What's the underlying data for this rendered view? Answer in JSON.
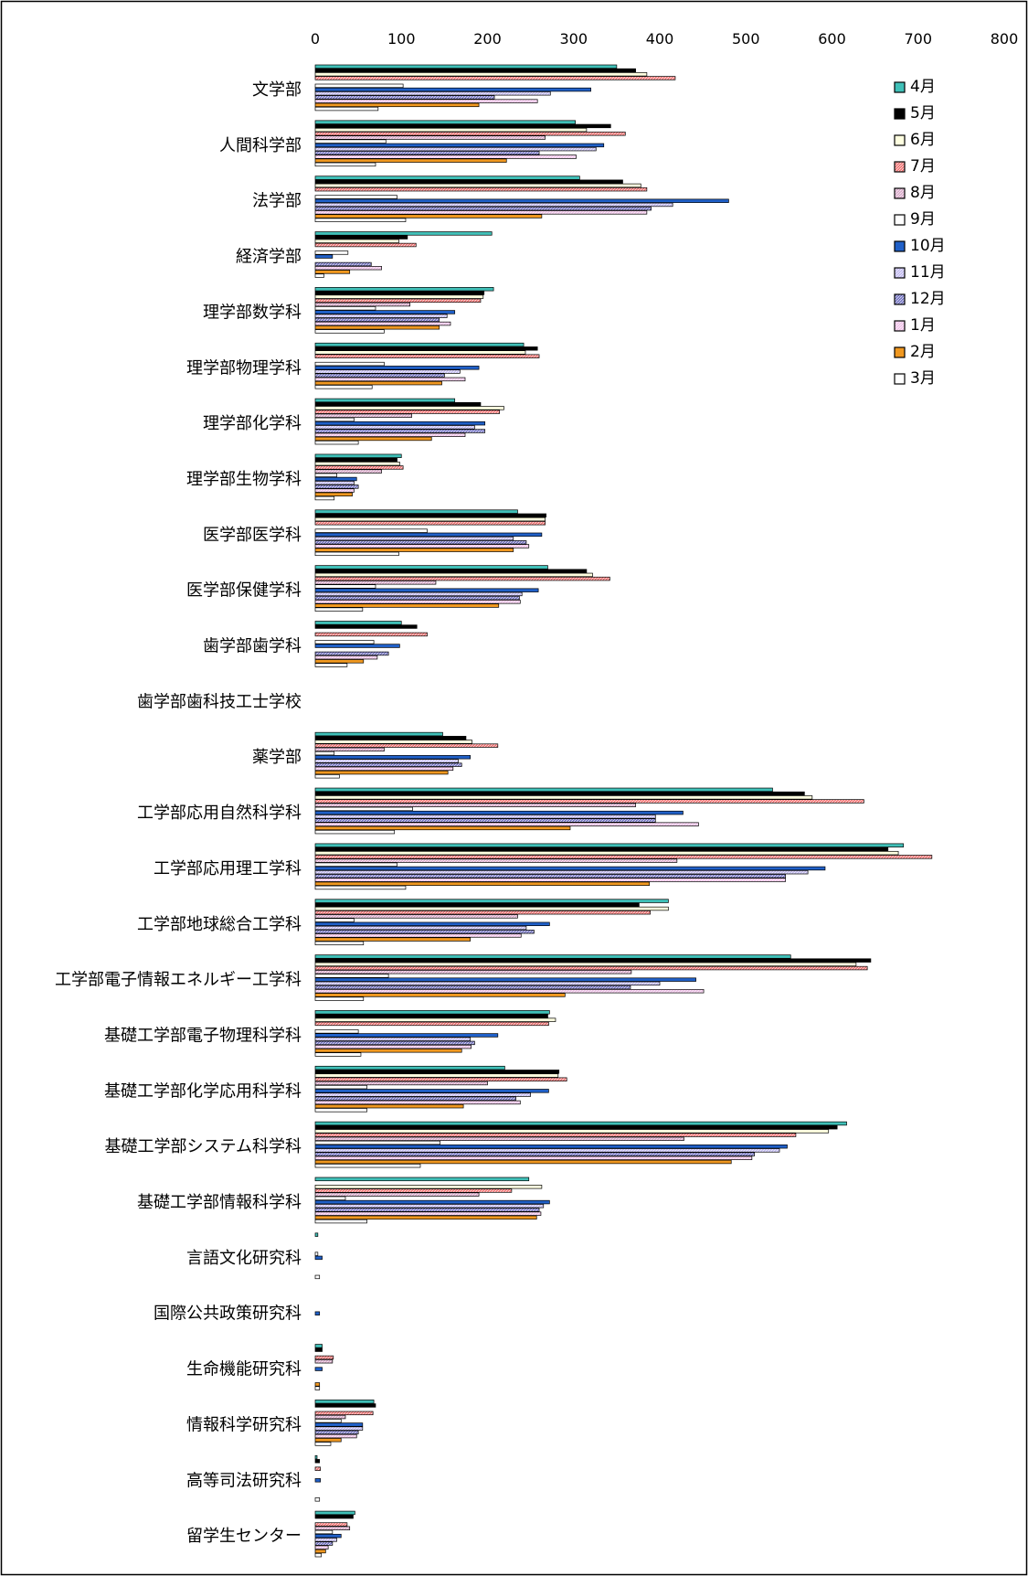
{
  "chart_data": {
    "type": "bar",
    "orientation": "horizontal",
    "xlim": [
      0,
      800
    ],
    "x_ticks": [
      0,
      100,
      200,
      300,
      400,
      500,
      600,
      700,
      800
    ],
    "x_axis_position": "top",
    "legend_position": "top-right",
    "grid": false,
    "categories": [
      "文学部",
      "人間科学部",
      "法学部",
      "経済学部",
      "理学部数学科",
      "理学部物理学科",
      "理学部化学科",
      "理学部生物学科",
      "医学部医学科",
      "医学部保健学科",
      "歯学部歯学科",
      "歯学部歯科技工士学校",
      "薬学部",
      "工学部応用自然科学科",
      "工学部応用理工学科",
      "工学部地球総合工学科",
      "工学部電子情報エネルギー工学科",
      "基礎工学部電子物理科学科",
      "基礎工学部化学応用科学科",
      "基礎工学部システム科学科",
      "基礎工学部情報科学科",
      "言語文化研究科",
      "国際公共政策研究科",
      "生命機能研究科",
      "情報科学研究科",
      "高等司法研究科",
      "留学生センター"
    ],
    "series": [
      {
        "name": "4月",
        "color": "#40c0b8",
        "pattern": "solid",
        "values": [
          350,
          302,
          307,
          205,
          207,
          242,
          162,
          100,
          235,
          270,
          100,
          0,
          148,
          531,
          683,
          410,
          552,
          272,
          220,
          617,
          248,
          3,
          0,
          8,
          68,
          2,
          46
        ]
      },
      {
        "name": "5月",
        "color": "#000000",
        "pattern": "solid",
        "values": [
          372,
          343,
          357,
          107,
          196,
          258,
          192,
          95,
          268,
          315,
          118,
          0,
          175,
          568,
          665,
          376,
          645,
          270,
          283,
          606,
          0,
          0,
          0,
          8,
          70,
          5,
          44
        ]
      },
      {
        "name": "6月",
        "color": "#ffffe0",
        "pattern": "solid",
        "values": [
          385,
          315,
          378,
          97,
          195,
          244,
          219,
          98,
          267,
          322,
          0,
          0,
          182,
          577,
          677,
          410,
          628,
          279,
          282,
          596,
          263,
          0,
          0,
          0,
          0,
          0,
          0
        ]
      },
      {
        "name": "7月",
        "color": "#f07070",
        "pattern": "hatch",
        "values": [
          418,
          360,
          385,
          117,
          192,
          260,
          214,
          102,
          267,
          342,
          130,
          0,
          212,
          637,
          716,
          389,
          641,
          271,
          292,
          558,
          228,
          0,
          0,
          21,
          67,
          6,
          37
        ]
      },
      {
        "name": "8月",
        "color": "#d8a8c8",
        "pattern": "hatch",
        "values": [
          0,
          267,
          0,
          0,
          110,
          0,
          112,
          77,
          0,
          140,
          0,
          0,
          80,
          372,
          420,
          235,
          367,
          0,
          200,
          428,
          190,
          0,
          0,
          20,
          35,
          0,
          40
        ]
      },
      {
        "name": "9月",
        "color": "#ffffff",
        "pattern": "solid",
        "values": [
          102,
          82,
          95,
          38,
          70,
          80,
          45,
          25,
          130,
          70,
          68,
          0,
          22,
          113,
          95,
          45,
          85,
          50,
          60,
          145,
          35,
          3,
          0,
          0,
          30,
          0,
          20
        ]
      },
      {
        "name": "10月",
        "color": "#2060c8",
        "pattern": "solid",
        "values": [
          320,
          335,
          480,
          20,
          162,
          190,
          197,
          48,
          263,
          259,
          98,
          0,
          180,
          427,
          592,
          272,
          442,
          212,
          271,
          548,
          272,
          8,
          5,
          8,
          55,
          6,
          30
        ]
      },
      {
        "name": "11月",
        "color": "#c0b8f0",
        "pattern": "hatch",
        "values": [
          273,
          326,
          415,
          0,
          153,
          168,
          185,
          45,
          230,
          240,
          0,
          0,
          166,
          395,
          572,
          245,
          400,
          180,
          250,
          539,
          265,
          0,
          0,
          0,
          55,
          0,
          25
        ]
      },
      {
        "name": "12月",
        "color": "#7070c0",
        "pattern": "hatch",
        "values": [
          208,
          260,
          390,
          65,
          144,
          150,
          197,
          50,
          245,
          237,
          85,
          0,
          170,
          395,
          546,
          254,
          366,
          185,
          233,
          510,
          260,
          0,
          0,
          0,
          50,
          0,
          20
        ]
      },
      {
        "name": "1月",
        "color": "#f0c0e8",
        "pattern": "hatch",
        "values": [
          258,
          303,
          385,
          77,
          157,
          174,
          174,
          45,
          248,
          238,
          72,
          0,
          160,
          445,
          546,
          239,
          451,
          181,
          238,
          507,
          262,
          0,
          0,
          0,
          48,
          0,
          15
        ]
      },
      {
        "name": "2月",
        "color": "#f09820",
        "pattern": "solid",
        "values": [
          190,
          222,
          263,
          40,
          144,
          147,
          135,
          43,
          230,
          213,
          56,
          0,
          154,
          296,
          388,
          180,
          290,
          170,
          172,
          483,
          257,
          0,
          0,
          5,
          30,
          0,
          12
        ]
      },
      {
        "name": "3月",
        "color": "#ffffff",
        "pattern": "solid",
        "values": [
          73,
          70,
          105,
          10,
          80,
          66,
          50,
          22,
          97,
          55,
          37,
          0,
          28,
          92,
          105,
          56,
          56,
          53,
          60,
          122,
          60,
          5,
          0,
          5,
          18,
          5,
          7
        ]
      }
    ]
  }
}
